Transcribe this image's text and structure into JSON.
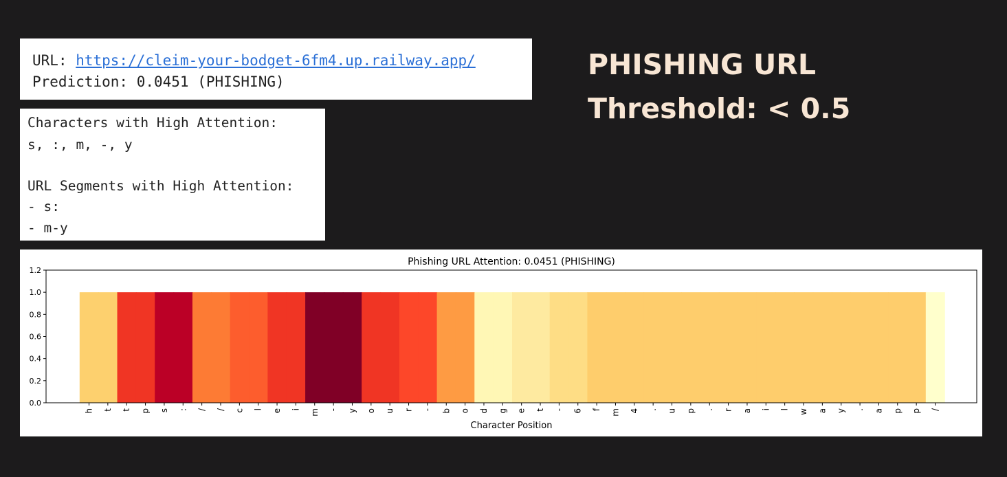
{
  "url_panel": {
    "dashes": "------------------------------------------------------------",
    "url_label": "URL: ",
    "url": "https://cleim-your-bodget-6fm4.up.railway.app/",
    "prediction": "Prediction: 0.0451 (PHISHING)"
  },
  "attention_panel": {
    "chars_heading": "Characters with High Attention:",
    "chars_list": "s, :, m, -, y",
    "segments_heading": "URL Segments with High Attention:",
    "segments": [
      "- s:",
      "- m-y"
    ]
  },
  "headline": {
    "line1": "PHISHING URL",
    "line2": "Threshold: < 0.5"
  },
  "chart_data": {
    "type": "heatmap",
    "title": "Phishing URL Attention: 0.0451 (PHISHING)",
    "xlabel": "Character Position",
    "ylabel": "",
    "ylim": [
      0,
      1.2
    ],
    "yticks": [
      "0.0",
      "0.2",
      "0.4",
      "0.6",
      "0.8",
      "1.0",
      "1.2"
    ],
    "characters": [
      "h",
      "t",
      "t",
      "p",
      "s",
      ":",
      "/",
      "/",
      "c",
      "l",
      "e",
      "i",
      "m",
      "-",
      "y",
      "o",
      "u",
      "r",
      "-",
      "b",
      "o",
      "d",
      "g",
      "e",
      "t",
      "-",
      "6",
      "f",
      "m",
      "4",
      ".",
      "u",
      "p",
      ".",
      "r",
      "a",
      "i",
      "l",
      "w",
      "a",
      "y",
      ".",
      "a",
      "p",
      "p",
      "/"
    ],
    "bar_height": 1.0,
    "cell_colors": [
      "#fdd06e",
      "#fdd06e",
      "#f03524",
      "#f03524",
      "#bb0026",
      "#bb0026",
      "#fd7b34",
      "#fd7b34",
      "#fd5d2d",
      "#fd5d2d",
      "#f03524",
      "#f03524",
      "#800026",
      "#800026",
      "#800026",
      "#f03524",
      "#f03524",
      "#fd4729",
      "#fd4729",
      "#fe9b43",
      "#fe9b43",
      "#fff7b5",
      "#fff7b5",
      "#feeaa0",
      "#feeaa0",
      "#fedd85",
      "#fedd85",
      "#fecd6c",
      "#fecd6c",
      "#fecd6c",
      "#fecd6c",
      "#fecd6c",
      "#fecd6c",
      "#fecd6c",
      "#fecd6c",
      "#fecd6c",
      "#fecd6c",
      "#fecd6c",
      "#fecd6c",
      "#fecd6c",
      "#fecd6c",
      "#fecd6c",
      "#fecd6c",
      "#fecd6c",
      "#fecd6c",
      "#ffffcc"
    ]
  }
}
